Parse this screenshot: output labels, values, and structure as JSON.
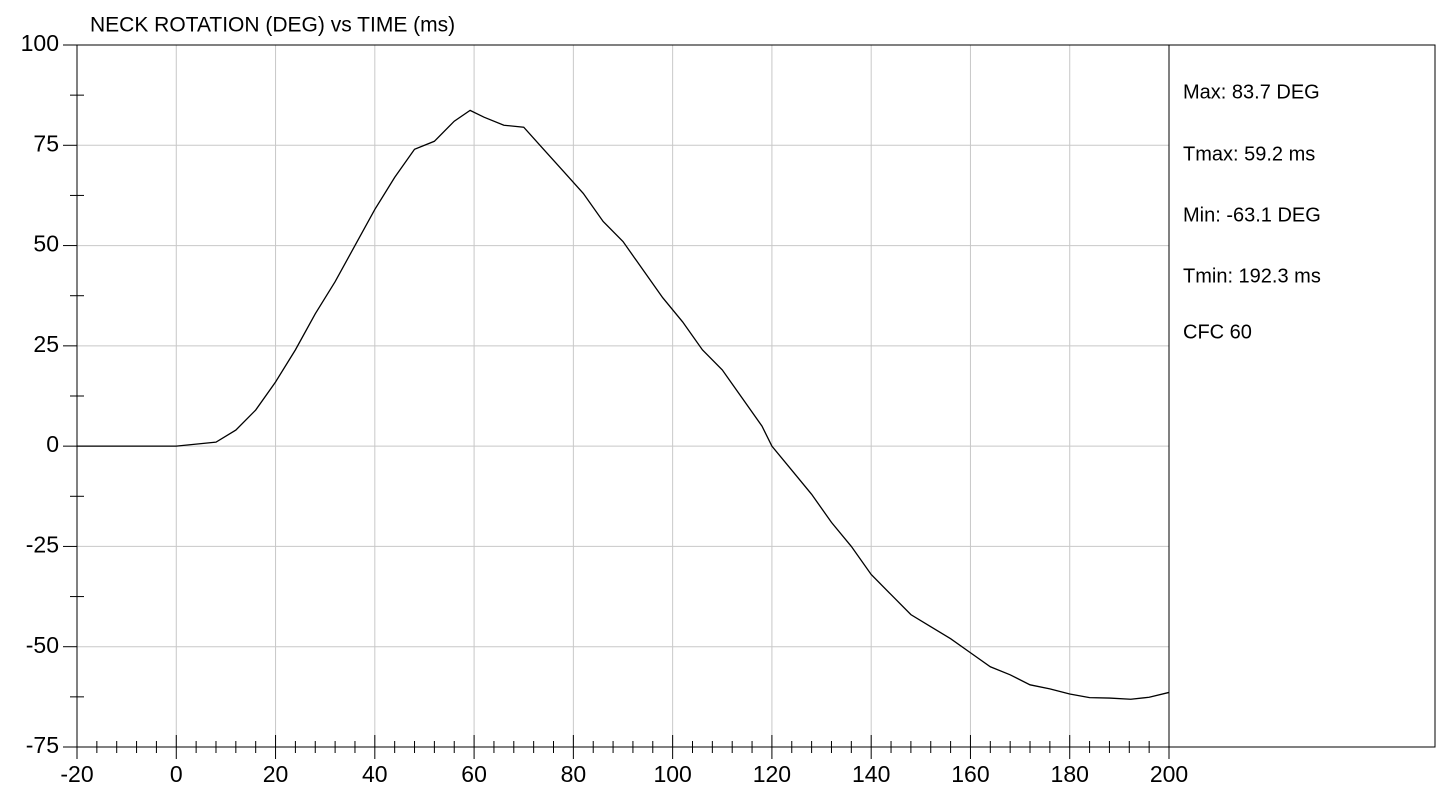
{
  "chart_data": {
    "type": "line",
    "title": "NECK ROTATION (DEG) vs TIME (ms)",
    "x": [
      -20,
      -10,
      0,
      4,
      8,
      12,
      16,
      20,
      24,
      28,
      32,
      36,
      40,
      44,
      48,
      52,
      56,
      59.2,
      62,
      66,
      70,
      74,
      78,
      82,
      86,
      90,
      94,
      98,
      102,
      106,
      110,
      114,
      118,
      120,
      124,
      128,
      132,
      136,
      140,
      144,
      148,
      152,
      156,
      160,
      164,
      168,
      172,
      176,
      180,
      184,
      188,
      192.3,
      196,
      200
    ],
    "series": [
      {
        "name": "Neck rotation",
        "color": "#000000",
        "values": [
          0,
          0,
          0,
          0.5,
          1,
          4,
          9,
          16,
          24,
          33,
          41,
          50,
          59,
          67,
          74,
          76,
          81,
          83.7,
          82,
          80,
          79.5,
          74,
          68.5,
          63,
          56,
          51,
          44,
          37,
          31,
          24,
          19,
          12,
          5,
          0,
          -6,
          -12,
          -19,
          -25,
          -32,
          -37,
          -42,
          -45,
          -48,
          -51.5,
          -55,
          -57,
          -59.5,
          -60.5,
          -61.8,
          -62.7,
          -62.8,
          -63.1,
          -62.6,
          -61.4
        ]
      }
    ],
    "xlim": [
      -20,
      200
    ],
    "ylim": [
      -75,
      100
    ],
    "xticks": [
      -20,
      0,
      20,
      40,
      60,
      80,
      100,
      120,
      140,
      160,
      180,
      200
    ],
    "yticks": [
      -75,
      -50,
      -25,
      0,
      25,
      50,
      75,
      100
    ],
    "xminorticks": [
      -16,
      -12,
      -8,
      -4,
      4,
      8,
      12,
      16,
      24,
      28,
      32,
      36,
      44,
      48,
      52,
      56,
      64,
      68,
      72,
      76,
      84,
      88,
      92,
      96,
      104,
      108,
      112,
      116,
      124,
      128,
      132,
      136,
      144,
      148,
      152,
      156,
      164,
      168,
      172,
      176,
      184,
      188,
      192,
      196
    ],
    "yminorticks": [
      -62.5,
      -37.5,
      -12.5,
      12.5,
      37.5,
      62.5,
      87.5
    ],
    "grid": true,
    "annotations": [
      "Max: 83.7 DEG",
      "Tmax: 59.2 ms",
      "Min: -63.1 DEG",
      "Tmin: 192.3 ms",
      "CFC 60"
    ]
  }
}
